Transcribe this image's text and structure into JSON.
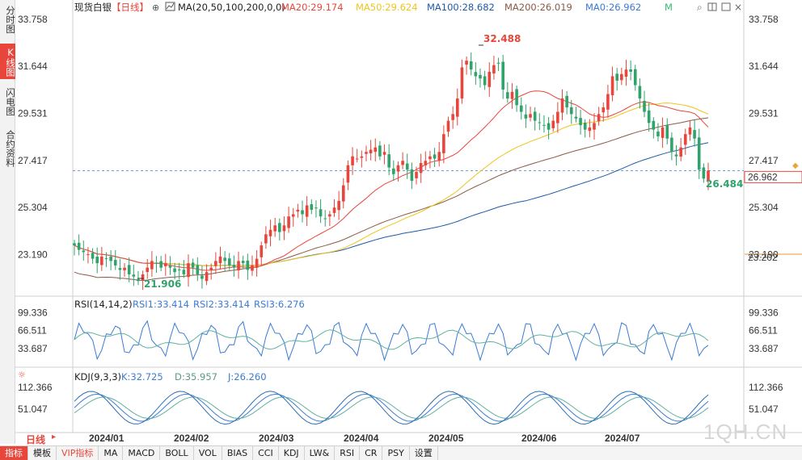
{
  "left_tabs": [
    "分时图",
    "K线图",
    "闪电图",
    "合约资料"
  ],
  "header": {
    "instrument": "现货白银",
    "period": "【日线】",
    "ma_params": "MA(20,50,100,200,0,0)",
    "ma_values": [
      {
        "label": "MA20:29.174",
        "color": "#e8463b"
      },
      {
        "label": "MA50:29.624",
        "color": "#f0c419"
      },
      {
        "label": "MA100:28.682",
        "color": "#1f5aa6"
      },
      {
        "label": "MA200:26.019",
        "color": "#8a5a44"
      },
      {
        "label": "MA0:26.962",
        "color": "#3a7bd5"
      },
      {
        "label": "M",
        "color": "#2fbf71"
      }
    ]
  },
  "price_axis": {
    "ticks": [
      "33.758",
      "31.644",
      "29.531",
      "27.417",
      "25.304",
      "23.190"
    ],
    "current_price": "26.962",
    "low_marker": "23.202"
  },
  "price_annotations": {
    "high": "32.488",
    "low": "21.906",
    "last_low": "26.484"
  },
  "rsi": {
    "title": "RSI(14,14,2)",
    "values": [
      {
        "label": "RSI1:33.414",
        "color": "#3a7bd5"
      },
      {
        "label": "RSI2:33.414",
        "color": "#3a7bd5"
      },
      {
        "label": "RSI3:6.276",
        "color": "#3a7bd5"
      }
    ],
    "ticks": [
      "99.336",
      "66.511",
      "33.687"
    ]
  },
  "kdj": {
    "title": "KDJ(9,3,3)",
    "values": [
      {
        "label": "K:32.725",
        "color": "#3a7bd5"
      },
      {
        "label": "D:35.957",
        "color": "#5a9a8a"
      },
      {
        "label": "J:26.260",
        "color": "#3a7bd5"
      }
    ],
    "ticks": [
      "112.366",
      "51.047"
    ]
  },
  "time_axis": [
    "2024/01",
    "2024/02",
    "2024/03",
    "2024/04",
    "2024/05",
    "2024/06",
    "2024/07"
  ],
  "period_tag": "日线",
  "toolbar": [
    "指标",
    "模板",
    "VIP指标",
    "MA",
    "MACD",
    "BOLL",
    "VOL",
    "BIAS",
    "CCI",
    "KDJ",
    "LW&",
    "RSI",
    "CR",
    "PSY",
    "设置"
  ],
  "watermark": "1QH.CN",
  "colors": {
    "up": "#e8463b",
    "down": "#2fa36b",
    "ma20": "#e8463b",
    "ma50": "#f0c419",
    "ma100": "#1f5aa6",
    "ma200": "#8a5a44"
  },
  "chart_data": {
    "type": "candlestick",
    "ylim": [
      21.5,
      33.9
    ],
    "close_series": [
      23.6,
      23.4,
      23.3,
      23.2,
      23.0,
      22.8,
      23.1,
      23.0,
      22.9,
      22.7,
      22.5,
      22.6,
      22.3,
      22.2,
      22.0,
      22.3,
      22.6,
      22.9,
      22.8,
      22.6,
      22.8,
      22.6,
      22.4,
      22.5,
      22.3,
      22.8,
      22.6,
      22.3,
      22.1,
      22.4,
      22.6,
      22.9,
      23.1,
      22.9,
      22.7,
      22.6,
      22.9,
      22.8,
      22.5,
      22.7,
      23.0,
      23.6,
      24.1,
      24.3,
      24.5,
      24.2,
      24.5,
      24.9,
      25.0,
      25.2,
      25.0,
      25.4,
      25.2,
      25.3,
      24.9,
      24.8,
      25.0,
      25.3,
      25.6,
      26.3,
      27.2,
      27.6,
      27.5,
      27.6,
      27.8,
      27.9,
      28.0,
      27.6,
      27.8,
      27.1,
      26.8,
      27.2,
      27.4,
      27.0,
      26.5,
      26.9,
      27.3,
      27.4,
      27.6,
      27.5,
      27.8,
      28.6,
      29.2,
      29.5,
      30.2,
      31.6,
      31.9,
      31.5,
      31.2,
      31.1,
      30.8,
      31.4,
      31.7,
      31.8,
      30.6,
      30.2,
      30.5,
      29.9,
      29.6,
      29.3,
      29.5,
      29.2,
      29.1,
      29.0,
      28.8,
      29.2,
      29.6,
      30.2,
      29.8,
      29.5,
      29.3,
      29.0,
      28.8,
      28.9,
      29.1,
      29.5,
      29.8,
      30.4,
      31.2,
      31.0,
      31.3,
      31.5,
      31.4,
      30.8,
      30.2,
      29.6,
      29.1,
      28.8,
      28.5,
      28.9,
      28.4,
      27.8,
      27.6,
      28.0,
      28.6,
      28.9,
      28.4,
      27.0,
      26.6,
      26.96
    ],
    "high": {
      "value": 32.488,
      "label": "32.488"
    },
    "low": {
      "value": 21.906,
      "label": "21.906"
    },
    "last_low": {
      "value": 26.484,
      "label": "26.484"
    },
    "current": 26.962,
    "ma_series": [
      {
        "name": "MA20",
        "last": 29.174
      },
      {
        "name": "MA50",
        "last": 29.624
      },
      {
        "name": "MA100",
        "last": 28.682
      },
      {
        "name": "MA200",
        "last": 26.019
      }
    ]
  }
}
